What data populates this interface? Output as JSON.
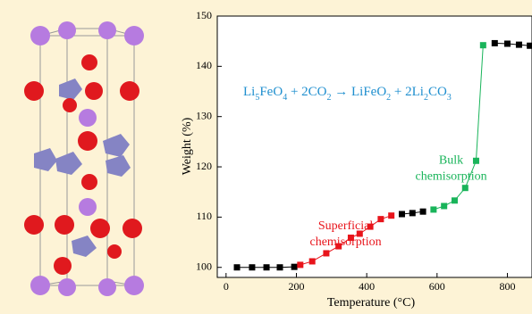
{
  "chart_data": {
    "type": "scatter",
    "x_label": "Temperature (°C)",
    "y_label": "Weight (%)",
    "equation": [
      "Li",
      "5",
      "FeO",
      "4",
      " + 2CO",
      "2",
      " → LiFeO",
      "2",
      " + 2Li",
      "2",
      "CO",
      "3"
    ],
    "annotations": [
      {
        "lines": [
          "Superficial",
          "chemisorption"
        ],
        "color": "#e8141b",
        "x": 340,
        "y": 105
      },
      {
        "lines": [
          "Bulk",
          "chemisorption"
        ],
        "color": "#19b45a",
        "x": 640,
        "y": 118
      }
    ],
    "series": [
      {
        "color": "#000000",
        "x": [
          31,
          74,
          115,
          153,
          194
        ],
        "values": [
          100,
          100,
          100,
          100,
          100.1
        ]
      },
      {
        "color": "#e8141b",
        "x": [
          211,
          245,
          285,
          320,
          355,
          380,
          410,
          440,
          470
        ],
        "values": [
          100.5,
          101.2,
          102.8,
          104.2,
          105.9,
          106.7,
          108.1,
          109.6,
          110.3
        ]
      },
      {
        "color": "#000000",
        "x": [
          500,
          530,
          560
        ],
        "values": [
          110.6,
          110.8,
          111.1
        ]
      },
      {
        "color": "#19b45a",
        "x": [
          590,
          620,
          650,
          680,
          711,
          731
        ],
        "values": [
          111.5,
          112.2,
          113.3,
          115.8,
          121.2,
          144.2
        ]
      },
      {
        "color": "#000000",
        "x": [
          764,
          800,
          833,
          864
        ],
        "values": [
          144.6,
          144.5,
          144.3,
          144.1
        ]
      }
    ],
    "xlim": [
      -25,
      870
    ],
    "xticks": [
      0,
      200,
      400,
      600,
      800
    ],
    "ylim": [
      98,
      150
    ],
    "yticks": [
      100,
      110,
      120,
      130,
      140,
      150
    ]
  }
}
